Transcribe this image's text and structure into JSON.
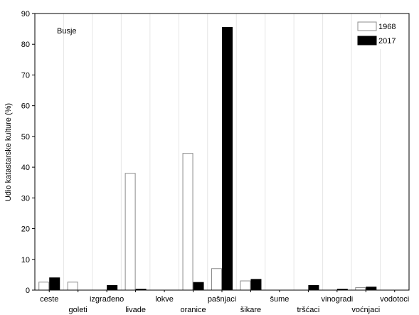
{
  "chart_data": {
    "type": "bar",
    "annotation": "Busje",
    "ylabel": "Udio katastarske kulture (%)",
    "xlabel": "",
    "ylim": [
      0,
      90
    ],
    "yticks": [
      0,
      10,
      20,
      30,
      40,
      50,
      60,
      70,
      80,
      90
    ],
    "grid": "vertical",
    "legend_position": "top-right",
    "categories": [
      "ceste",
      "goleti",
      "izgrađeno",
      "livade",
      "lokve",
      "oranice",
      "pašnjaci",
      "šikare",
      "šume",
      "tršćaci",
      "vinogradi",
      "voćnjaci",
      "vodotoci"
    ],
    "series": [
      {
        "name": "1968",
        "color": "#ffffff",
        "values": [
          2.6,
          2.6,
          0,
          38.0,
          0,
          44.5,
          7.0,
          3.0,
          0,
          0,
          0,
          0.8,
          0
        ]
      },
      {
        "name": "2017",
        "color": "#000000",
        "values": [
          4.0,
          0,
          1.5,
          0.3,
          0,
          2.5,
          85.5,
          3.5,
          0,
          1.5,
          0.3,
          1.0,
          0
        ]
      }
    ]
  }
}
